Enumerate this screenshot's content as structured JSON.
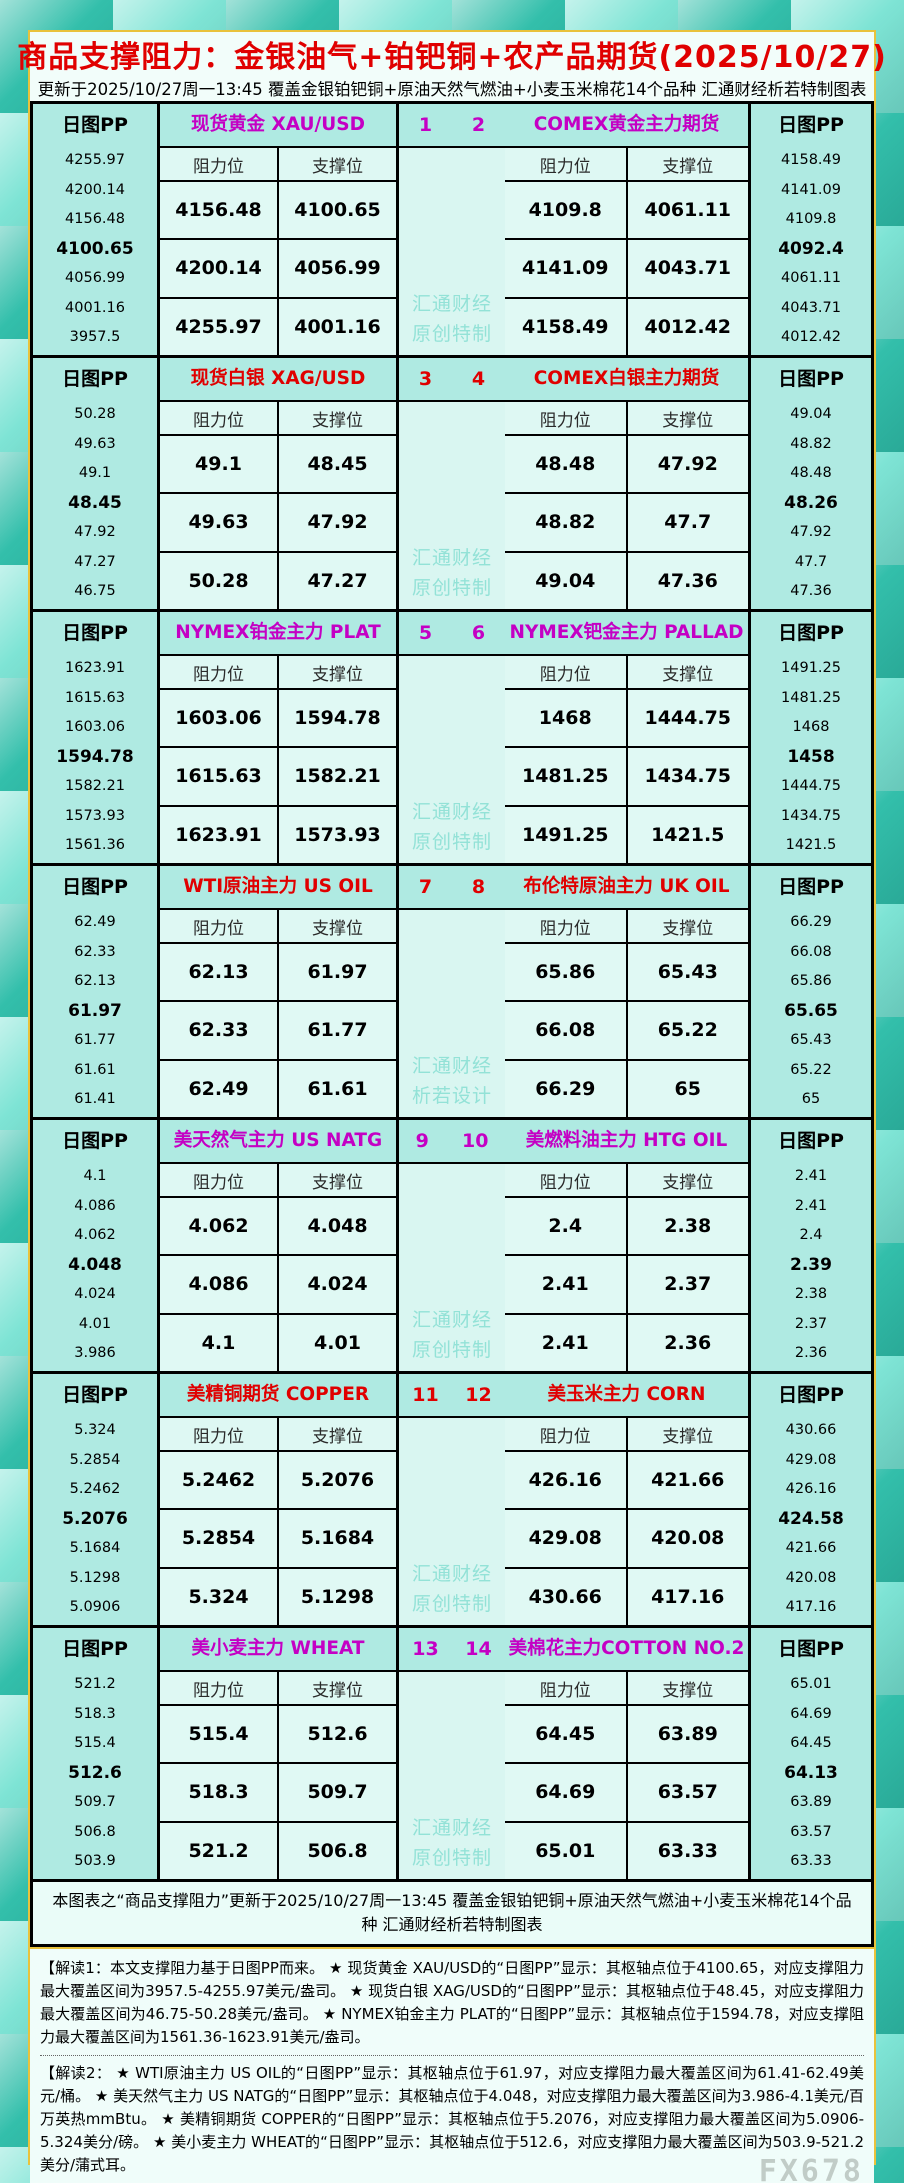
{
  "title": "商品支撑阻力：金银油气+铂钯铜+农产品期货(2025/10/27)",
  "subtitle": "更新于2025/10/27周一13:45 覆盖金银铂钯铜+原油天然气燃油+小麦玉米棉花14个品种 汇通财经析若特制图表",
  "labels": {
    "pp_header": "日图PP",
    "resistance": "阻力位",
    "support": "支撑位"
  },
  "watermark": {
    "line1": "汇通财经",
    "fx": "FX678"
  },
  "colors": {
    "accent_red": "#e00000",
    "accent_magenta": "#c400c4",
    "frame_teal": "#49cdb9",
    "band_teal": "#afeae2",
    "cell_teal": "#e0f9f4",
    "gold_border": "#e9c23c"
  },
  "rows": [
    {
      "accent": "magenta",
      "num_left": "1",
      "num_right": "2",
      "watermark2": "原创特制",
      "left": {
        "name": "现货黄金 XAU/USD",
        "pp": [
          "4255.97",
          "4200.14",
          "4156.48",
          "4100.65",
          "4056.99",
          "4001.16",
          "3957.5"
        ],
        "levels": [
          [
            "4156.48",
            "4100.65"
          ],
          [
            "4200.14",
            "4056.99"
          ],
          [
            "4255.97",
            "4001.16"
          ]
        ]
      },
      "right": {
        "name": "COMEX黄金主力期货",
        "pp": [
          "4158.49",
          "4141.09",
          "4109.8",
          "4092.4",
          "4061.11",
          "4043.71",
          "4012.42"
        ],
        "levels": [
          [
            "4109.8",
            "4061.11"
          ],
          [
            "4141.09",
            "4043.71"
          ],
          [
            "4158.49",
            "4012.42"
          ]
        ]
      }
    },
    {
      "accent": "red",
      "num_left": "3",
      "num_right": "4",
      "watermark2": "原创特制",
      "left": {
        "name": "现货白银 XAG/USD",
        "pp": [
          "50.28",
          "49.63",
          "49.1",
          "48.45",
          "47.92",
          "47.27",
          "46.75"
        ],
        "levels": [
          [
            "49.1",
            "48.45"
          ],
          [
            "49.63",
            "47.92"
          ],
          [
            "50.28",
            "47.27"
          ]
        ]
      },
      "right": {
        "name": "COMEX白银主力期货",
        "pp": [
          "49.04",
          "48.82",
          "48.48",
          "48.26",
          "47.92",
          "47.7",
          "47.36"
        ],
        "levels": [
          [
            "48.48",
            "47.92"
          ],
          [
            "48.82",
            "47.7"
          ],
          [
            "49.04",
            "47.36"
          ]
        ]
      }
    },
    {
      "accent": "magenta",
      "num_left": "5",
      "num_right": "6",
      "watermark2": "原创特制",
      "left": {
        "name": "NYMEX铂金主力 PLAT",
        "pp": [
          "1623.91",
          "1615.63",
          "1603.06",
          "1594.78",
          "1582.21",
          "1573.93",
          "1561.36"
        ],
        "levels": [
          [
            "1603.06",
            "1594.78"
          ],
          [
            "1615.63",
            "1582.21"
          ],
          [
            "1623.91",
            "1573.93"
          ]
        ]
      },
      "right": {
        "name": "NYMEX钯金主力 PALLAD",
        "pp": [
          "1491.25",
          "1481.25",
          "1468",
          "1458",
          "1444.75",
          "1434.75",
          "1421.5"
        ],
        "levels": [
          [
            "1468",
            "1444.75"
          ],
          [
            "1481.25",
            "1434.75"
          ],
          [
            "1491.25",
            "1421.5"
          ]
        ]
      }
    },
    {
      "accent": "red",
      "num_left": "7",
      "num_right": "8",
      "watermark2": "析若设计",
      "left": {
        "name": "WTI原油主力 US OIL",
        "pp": [
          "62.49",
          "62.33",
          "62.13",
          "61.97",
          "61.77",
          "61.61",
          "61.41"
        ],
        "levels": [
          [
            "62.13",
            "61.97"
          ],
          [
            "62.33",
            "61.77"
          ],
          [
            "62.49",
            "61.61"
          ]
        ]
      },
      "right": {
        "name": "布伦特原油主力 UK OIL",
        "pp": [
          "66.29",
          "66.08",
          "65.86",
          "65.65",
          "65.43",
          "65.22",
          "65"
        ],
        "levels": [
          [
            "65.86",
            "65.43"
          ],
          [
            "66.08",
            "65.22"
          ],
          [
            "66.29",
            "65"
          ]
        ]
      }
    },
    {
      "accent": "magenta",
      "num_left": "9",
      "num_right": "10",
      "watermark2": "原创特制",
      "left": {
        "name": "美天然气主力 US NATG",
        "pp": [
          "4.1",
          "4.086",
          "4.062",
          "4.048",
          "4.024",
          "4.01",
          "3.986"
        ],
        "levels": [
          [
            "4.062",
            "4.048"
          ],
          [
            "4.086",
            "4.024"
          ],
          [
            "4.1",
            "4.01"
          ]
        ]
      },
      "right": {
        "name": "美燃料油主力 HTG OIL",
        "pp": [
          "2.41",
          "2.41",
          "2.4",
          "2.39",
          "2.38",
          "2.37",
          "2.36"
        ],
        "levels": [
          [
            "2.4",
            "2.38"
          ],
          [
            "2.41",
            "2.37"
          ],
          [
            "2.41",
            "2.36"
          ]
        ]
      }
    },
    {
      "accent": "red",
      "num_left": "11",
      "num_right": "12",
      "watermark2": "原创特制",
      "left": {
        "name": "美精铜期货 COPPER",
        "pp": [
          "5.324",
          "5.2854",
          "5.2462",
          "5.2076",
          "5.1684",
          "5.1298",
          "5.0906"
        ],
        "levels": [
          [
            "5.2462",
            "5.2076"
          ],
          [
            "5.2854",
            "5.1684"
          ],
          [
            "5.324",
            "5.1298"
          ]
        ]
      },
      "right": {
        "name": "美玉米主力 CORN",
        "pp": [
          "430.66",
          "429.08",
          "426.16",
          "424.58",
          "421.66",
          "420.08",
          "417.16"
        ],
        "levels": [
          [
            "426.16",
            "421.66"
          ],
          [
            "429.08",
            "420.08"
          ],
          [
            "430.66",
            "417.16"
          ]
        ]
      }
    },
    {
      "accent": "magenta",
      "num_left": "13",
      "num_right": "14",
      "watermark2": "原创特制",
      "left": {
        "name": "美小麦主力 WHEAT",
        "pp": [
          "521.2",
          "518.3",
          "515.4",
          "512.6",
          "509.7",
          "506.8",
          "503.9"
        ],
        "levels": [
          [
            "515.4",
            "512.6"
          ],
          [
            "518.3",
            "509.7"
          ],
          [
            "521.2",
            "506.8"
          ]
        ]
      },
      "right": {
        "name": "美棉花主力COTTON NO.2",
        "pp": [
          "65.01",
          "64.69",
          "64.45",
          "64.13",
          "63.89",
          "63.57",
          "63.33"
        ],
        "levels": [
          [
            "64.45",
            "63.89"
          ],
          [
            "64.69",
            "63.57"
          ],
          [
            "65.01",
            "63.33"
          ]
        ]
      }
    }
  ],
  "footer": {
    "summary": "本图表之“商品支撑阻力”更新于2025/10/27周一13:45 覆盖金银铂钯铜+原油天然气燃油+小麦玉米棉花14个品种 汇通财经析若特制图表",
    "note1": "【解读1：本文支撑阻力基于日图PP而来。 ★ 现货黄金 XAU/USD的“日图PP”显示：其枢轴点位于4100.65，对应支撑阻力最大覆盖区间为3957.5-4255.97美元/盎司。 ★ 现货白银 XAG/USD的“日图PP”显示：其枢轴点位于48.45，对应支撑阻力最大覆盖区间为46.75-50.28美元/盎司。 ★ NYMEX铂金主力 PLAT的“日图PP”显示：其枢轴点位于1594.78，对应支撑阻力最大覆盖区间为1561.36-1623.91美元/盎司。",
    "note2": "【解读2： ★ WTI原油主力 US OIL的“日图PP”显示：其枢轴点位于61.97，对应支撑阻力最大覆盖区间为61.41-62.49美元/桶。 ★ 美天然气主力 US NATG的“日图PP”显示：其枢轴点位于4.048，对应支撑阻力最大覆盖区间为3.986-4.1美元/百万英热mmBtu。 ★ 美精铜期货 COPPER的“日图PP”显示：其枢轴点位于5.2076，对应支撑阻力最大覆盖区间为5.0906-5.324美分/磅。 ★ 美小麦主力 WHEAT的“日图PP”显示：其枢轴点位于512.6，对应支撑阻力最大覆盖区间为503.9-521.2美分/蒲式耳。"
  }
}
